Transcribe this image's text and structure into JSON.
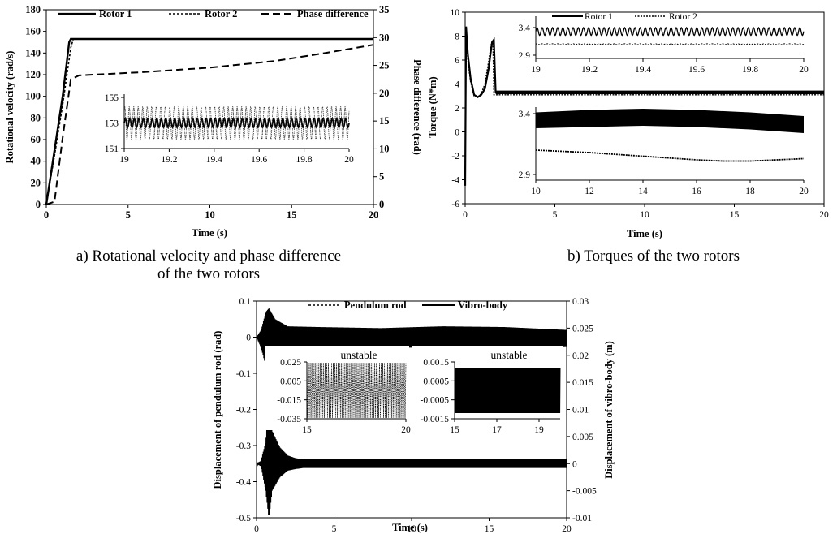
{
  "captions": {
    "a_line1": "a) Rotational velocity and phase difference",
    "a_line2": "of the two rotors",
    "b": "b) Torques of the two rotors"
  },
  "chart_data": [
    {
      "id": "a",
      "type": "line",
      "xlabel": "Time (s)",
      "ylabel": "Rotational velocity (rad/s)",
      "y2label": "Phase difference (rad)",
      "xlim": [
        0,
        20
      ],
      "ylim": [
        0,
        180
      ],
      "y2lim": [
        0,
        35
      ],
      "xticks": [
        "0",
        "5",
        "10",
        "15",
        "20"
      ],
      "yticks": [
        "0",
        "20",
        "40",
        "60",
        "80",
        "100",
        "120",
        "140",
        "160",
        "180"
      ],
      "y2ticks": [
        "0",
        "5",
        "10",
        "15",
        "20",
        "25",
        "30",
        "35"
      ],
      "legend_position": "top",
      "series": [
        {
          "name": "Rotor 1",
          "axis": "left",
          "style": "solid",
          "x": [
            0,
            0.5,
            1.0,
            1.4,
            1.5,
            20
          ],
          "y": [
            0,
            50,
            100,
            150,
            153,
            153
          ]
        },
        {
          "name": "Rotor 2",
          "axis": "left",
          "style": "dotted",
          "x": [
            0,
            0.5,
            1.0,
            1.5,
            1.65,
            20
          ],
          "y": [
            0,
            45,
            92,
            145,
            153,
            153
          ]
        },
        {
          "name": "Phase difference",
          "axis": "right",
          "style": "dashed",
          "x": [
            0,
            0.5,
            1.0,
            1.5,
            2,
            6,
            10,
            14,
            17,
            20
          ],
          "y": [
            0,
            0.5,
            12,
            22.5,
            23.2,
            23.8,
            24.6,
            25.8,
            27.2,
            28.7
          ]
        }
      ],
      "inset": {
        "xlim": [
          19,
          20
        ],
        "ylim": [
          151,
          155
        ],
        "xticks": [
          "19",
          "19.2",
          "19.4",
          "19.6",
          "19.8",
          "20"
        ],
        "yticks": [
          "151",
          "153",
          "155"
        ],
        "series": [
          {
            "name": "Rotor 1",
            "mean": 153,
            "amplitude": 0.35
          },
          {
            "name": "Rotor 2",
            "mean": 153,
            "amplitude": 1.3
          }
        ]
      }
    },
    {
      "id": "b",
      "type": "line",
      "xlabel": "Time (s)",
      "ylabel": "Torque (N*m)",
      "xlim": [
        0,
        20
      ],
      "ylim": [
        -6,
        10
      ],
      "xticks": [
        "0",
        "5",
        "10",
        "15",
        "20"
      ],
      "yticks": [
        "-6",
        "-4",
        "-2",
        "0",
        "2",
        "4",
        "6",
        "8",
        "10"
      ],
      "legend_position": "inside-top",
      "series": [
        {
          "name": "Rotor 1",
          "style": "solid",
          "x": [
            0,
            0.05,
            0.15,
            0.3,
            0.5,
            0.7,
            0.9,
            1.1,
            1.3,
            1.5,
            1.6,
            1.7,
            20
          ],
          "y": [
            -4.5,
            8.8,
            6.5,
            4.5,
            3.1,
            2.9,
            3.1,
            3.6,
            5.2,
            7.5,
            7.7,
            3.3,
            3.3
          ]
        },
        {
          "name": "Rotor 2",
          "style": "dotted",
          "x": [
            0,
            0.05,
            0.15,
            0.3,
            0.5,
            0.7,
            0.9,
            1.1,
            1.3,
            1.45,
            1.55,
            1.6,
            20
          ],
          "y": [
            -4.0,
            8.2,
            6.0,
            4.2,
            3.0,
            2.9,
            3.2,
            4.0,
            5.8,
            7.3,
            7.4,
            3.1,
            3.1
          ]
        }
      ],
      "inset_top": {
        "xlim": [
          19,
          20
        ],
        "ylim": [
          2.9,
          3.4
        ],
        "xticks": [
          "19",
          "19.2",
          "19.4",
          "19.6",
          "19.8",
          "20"
        ],
        "yticks": [
          "2.9",
          "3.4"
        ],
        "series": [
          {
            "name": "Rotor 1",
            "mean": 3.33,
            "amplitude": 0.07
          },
          {
            "name": "Rotor 2",
            "mean": 3.1,
            "amplitude": 0.008
          }
        ]
      },
      "inset_bottom": {
        "xlim": [
          10,
          20
        ],
        "ylim": [
          2.9,
          3.4
        ],
        "xticks": [
          "10",
          "12",
          "14",
          "16",
          "18",
          "20"
        ],
        "yticks": [
          "2.9",
          "3.4"
        ],
        "series": [
          {
            "name": "Rotor 1",
            "x": [
              10,
              12,
              14,
              16,
              18,
              20
            ],
            "upper": [
              3.41,
              3.43,
              3.44,
              3.43,
              3.41,
              3.38
            ],
            "lower": [
              3.28,
              3.29,
              3.3,
              3.29,
              3.27,
              3.24
            ]
          },
          {
            "name": "Rotor 2",
            "x": [
              10,
              12,
              14,
              16,
              17,
              18,
              20
            ],
            "y": [
              3.1,
              3.08,
              3.05,
              3.02,
              3.01,
              3.01,
              3.03
            ]
          }
        ]
      }
    },
    {
      "id": "c",
      "type": "line",
      "xlabel": "Time (s)",
      "ylabel": "Displacement of pendulum rod (rad)",
      "y2label": "Displacement of vibro-body (m)",
      "xlim": [
        0,
        20
      ],
      "ylim": [
        -0.5,
        0.1
      ],
      "y2lim": [
        -0.01,
        0.03
      ],
      "xticks": [
        "0",
        "5",
        "10",
        "15",
        "20"
      ],
      "yticks": [
        "-0.5",
        "-0.4",
        "-0.3",
        "-0.2",
        "-0.1",
        "0",
        "0.1"
      ],
      "y2ticks": [
        "-0.01",
        "-0.005",
        "0",
        "0.005",
        "0.01",
        "0.015",
        "0.02",
        "0.025",
        "0.03"
      ],
      "legend_position": "top",
      "series": [
        {
          "name": "Pendulum rod",
          "axis": "left",
          "style": "dotted",
          "envelope_x": [
            0,
            0.3,
            0.6,
            0.8,
            1.2,
            2,
            4,
            8,
            12,
            16,
            20
          ],
          "upper": [
            0,
            0.02,
            0.07,
            0.08,
            0.05,
            0.03,
            0.028,
            0.025,
            0.03,
            0.028,
            0.02
          ],
          "lower": [
            0,
            -0.03,
            -0.08,
            -0.09,
            -0.05,
            -0.03,
            -0.03,
            -0.028,
            -0.03,
            -0.028,
            -0.025
          ]
        },
        {
          "name": "Vibro-body",
          "axis": "right",
          "style": "solid",
          "envelope_x": [
            0,
            0.3,
            0.6,
            0.8,
            1.0,
            1.5,
            2,
            2.5,
            3,
            20
          ],
          "upper": [
            0,
            0.0005,
            0.004,
            0.011,
            0.006,
            0.003,
            0.0015,
            0.001,
            0.0008,
            0.0008
          ],
          "lower": [
            0,
            -0.0005,
            -0.005,
            -0.01,
            -0.005,
            -0.0025,
            -0.0013,
            -0.001,
            -0.0008,
            -0.0008
          ]
        }
      ],
      "inset_left": {
        "label": "unstable",
        "xlim": [
          15,
          20
        ],
        "ylim": [
          -0.035,
          0.025
        ],
        "xticks": [
          "15",
          "20"
        ],
        "yticks": [
          "-0.035",
          "-0.015",
          "0.005",
          "0.025"
        ],
        "series": [
          {
            "name": "Pendulum rod",
            "upper": 0.024,
            "lower": -0.034
          }
        ]
      },
      "inset_right": {
        "label": "unstable",
        "xlim": [
          15,
          20
        ],
        "ylim": [
          -0.0015,
          0.0015
        ],
        "xticks": [
          "15",
          "17",
          "19"
        ],
        "yticks": [
          "-0.0015",
          "-0.0005",
          "0.0005",
          "0.0015"
        ],
        "series": [
          {
            "name": "Vibro-body",
            "upper": 0.0012,
            "lower": -0.0012
          }
        ]
      }
    }
  ]
}
